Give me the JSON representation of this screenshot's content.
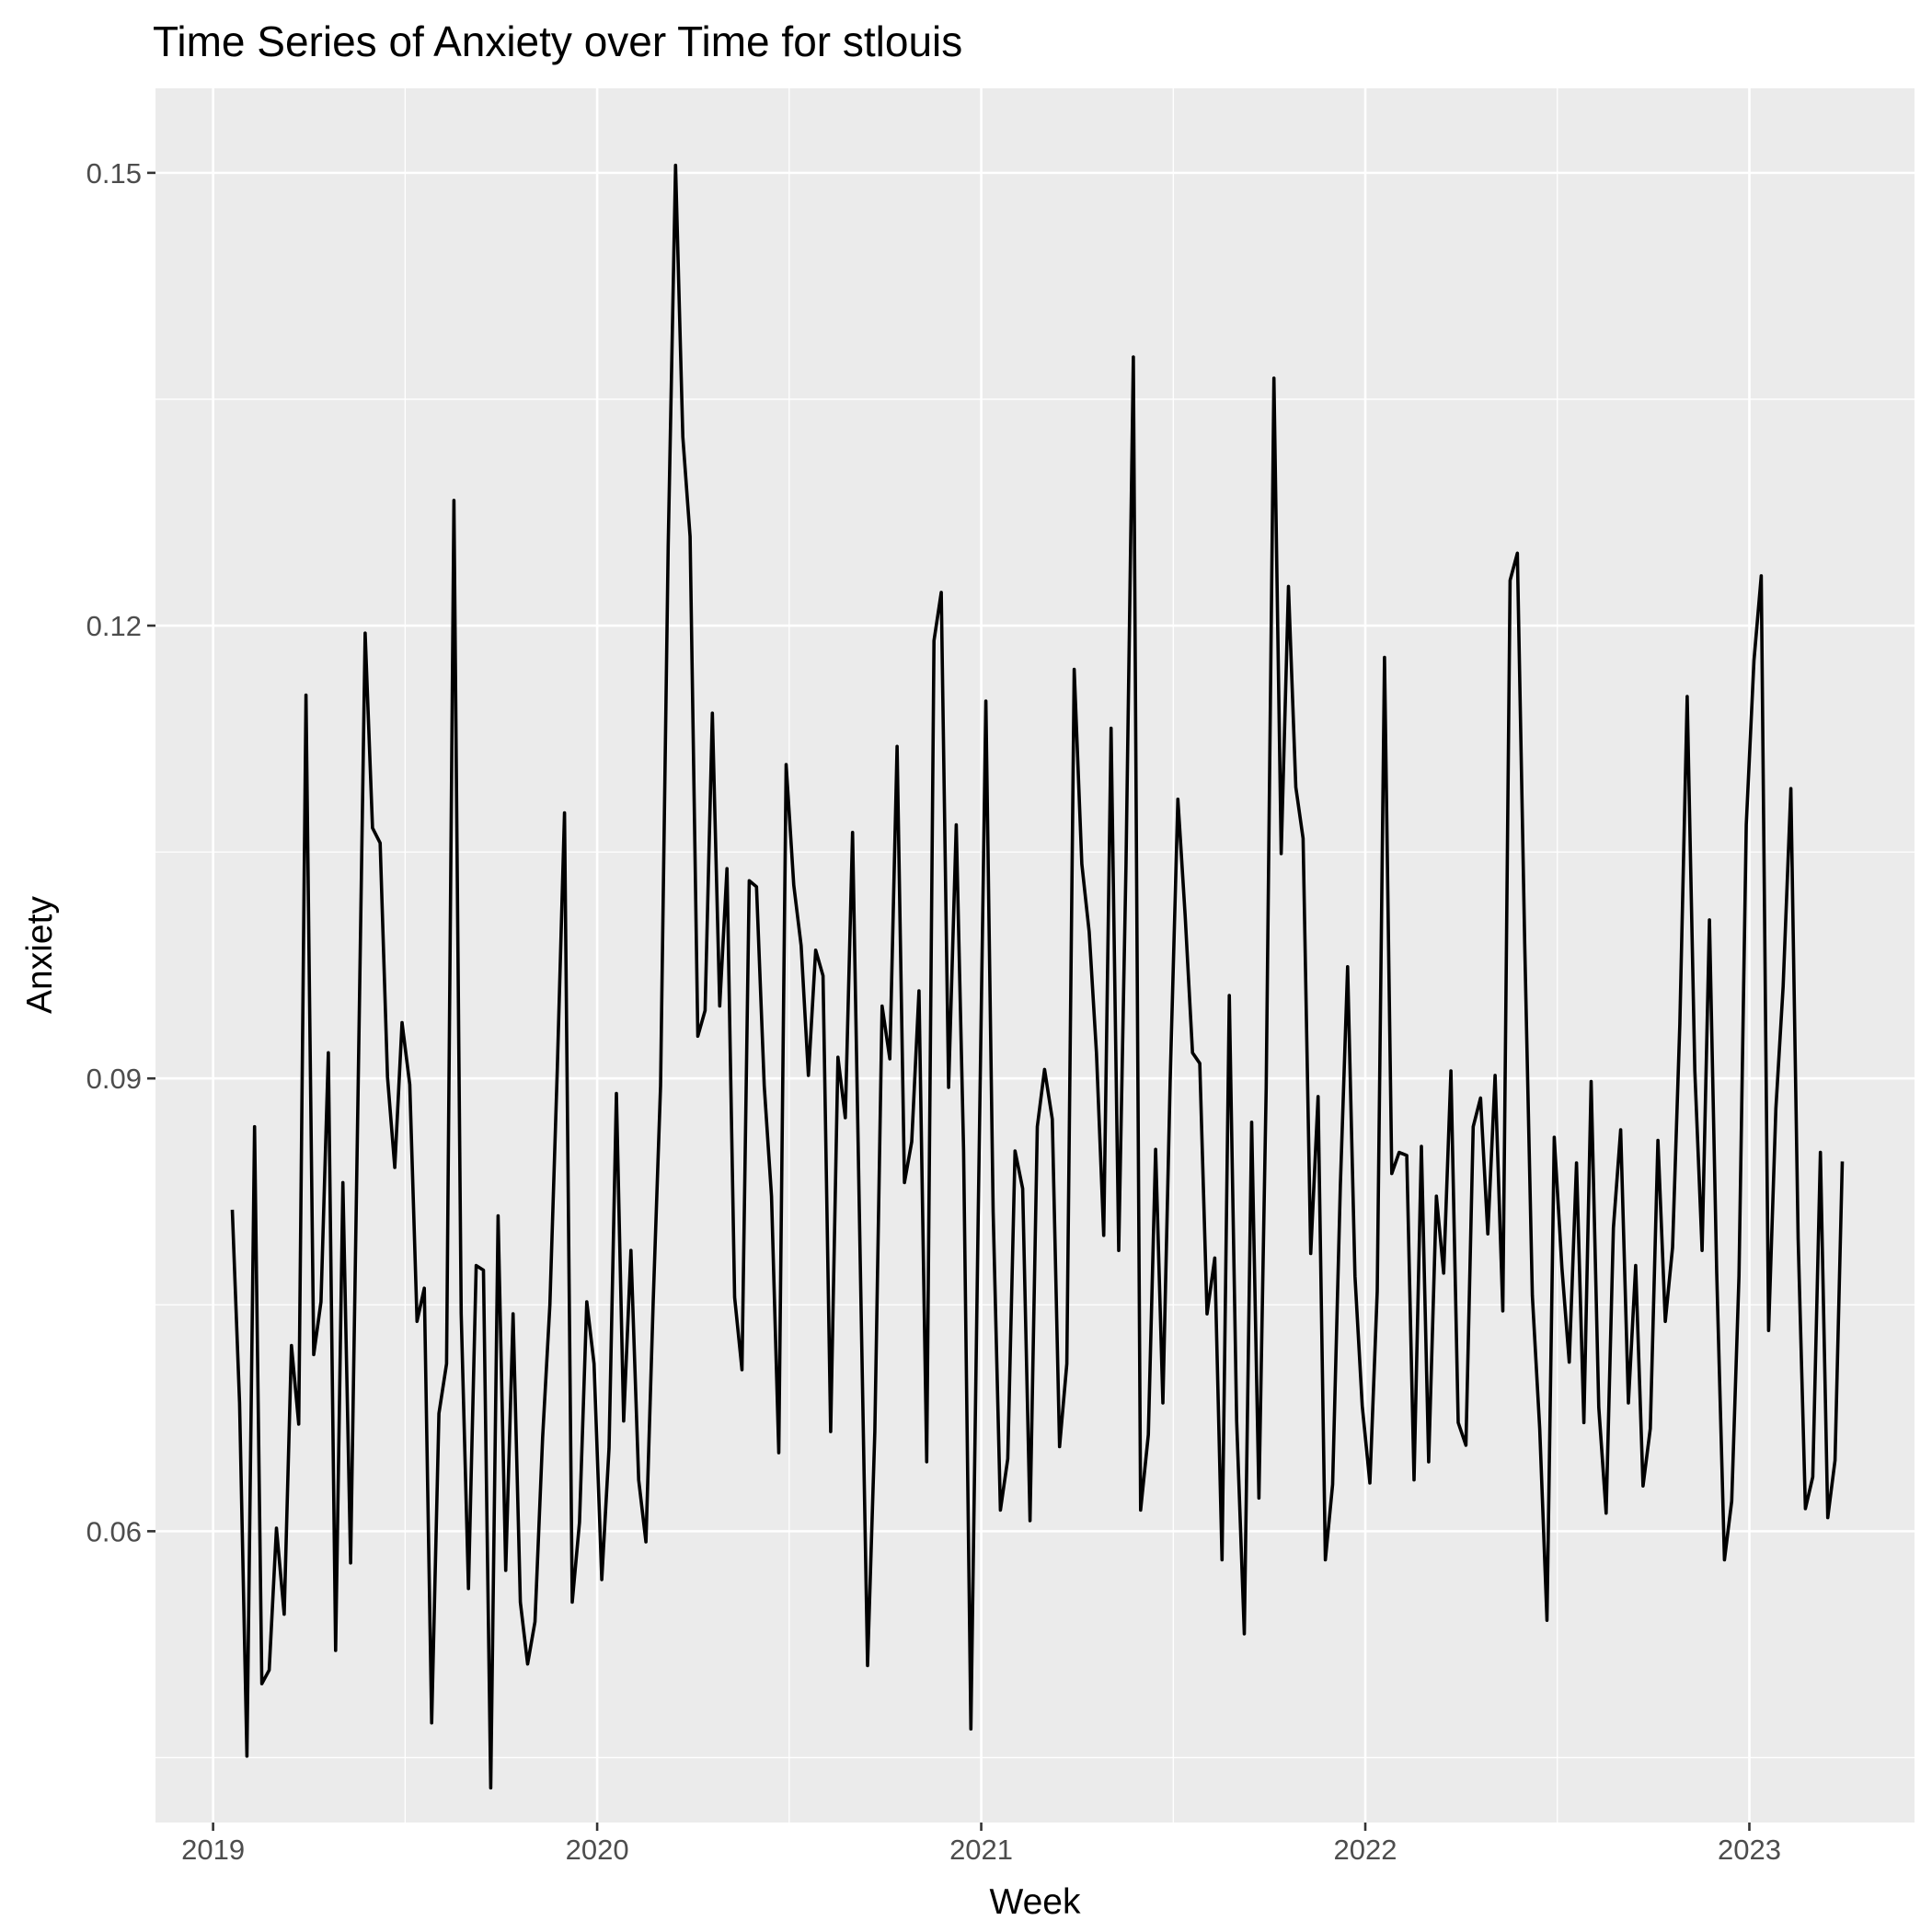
{
  "chart_data": {
    "type": "line",
    "title": "Time Series of Anxiety over Time for  stlouis",
    "xlabel": "Week",
    "ylabel": "Anxiety",
    "x_tick_labels": [
      "2019",
      "2020",
      "2021",
      "2022",
      "2023"
    ],
    "y_tick_labels": [
      "0.06",
      "0.09",
      "0.12",
      "0.15"
    ],
    "x_ticks": [
      2019,
      2020,
      2021,
      2022,
      2023
    ],
    "y_ticks": [
      0.06,
      0.09,
      0.12,
      0.15
    ],
    "xlim": [
      2018.85,
      2023.43
    ],
    "ylim": [
      0.0407,
      0.1556
    ],
    "grid": true,
    "background": "#ebebeb",
    "line_color": "#000000",
    "series": [
      {
        "x": [
          2019.05,
          2019.069,
          2019.088,
          2019.108,
          2019.127,
          2019.146,
          2019.165,
          2019.185,
          2019.204,
          2019.223,
          2019.242,
          2019.262,
          2019.281,
          2019.3,
          2019.319,
          2019.338,
          2019.358,
          2019.377,
          2019.396,
          2019.415,
          2019.435,
          2019.454,
          2019.473,
          2019.492,
          2019.512,
          2019.531,
          2019.55,
          2019.569,
          2019.588,
          2019.608,
          2019.627,
          2019.646,
          2019.665,
          2019.685,
          2019.704,
          2019.723,
          2019.742,
          2019.762,
          2019.781,
          2019.8,
          2019.819,
          2019.838,
          2019.858,
          2019.877,
          2019.896,
          2019.915,
          2019.935,
          2019.954,
          2019.973,
          2019.992,
          2020.012,
          2020.031,
          2020.05,
          2020.069,
          2020.088,
          2020.108,
          2020.127,
          2020.146,
          2020.165,
          2020.185,
          2020.204,
          2020.223,
          2020.242,
          2020.262,
          2020.281,
          2020.3,
          2020.319,
          2020.338,
          2020.358,
          2020.377,
          2020.396,
          2020.415,
          2020.435,
          2020.454,
          2020.473,
          2020.492,
          2020.512,
          2020.531,
          2020.55,
          2020.569,
          2020.588,
          2020.608,
          2020.627,
          2020.646,
          2020.665,
          2020.685,
          2020.704,
          2020.723,
          2020.742,
          2020.762,
          2020.781,
          2020.8,
          2020.819,
          2020.838,
          2020.858,
          2020.877,
          2020.896,
          2020.915,
          2020.935,
          2020.954,
          2020.973,
          2020.992,
          2021.012,
          2021.031,
          2021.05,
          2021.069,
          2021.088,
          2021.108,
          2021.127,
          2021.146,
          2021.165,
          2021.185,
          2021.204,
          2021.223,
          2021.242,
          2021.262,
          2021.281,
          2021.3,
          2021.319,
          2021.338,
          2021.358,
          2021.377,
          2021.396,
          2021.415,
          2021.435,
          2021.454,
          2021.473,
          2021.492,
          2021.512,
          2021.531,
          2021.55,
          2021.569,
          2021.588,
          2021.608,
          2021.627,
          2021.646,
          2021.665,
          2021.685,
          2021.704,
          2021.723,
          2021.742,
          2021.762,
          2021.781,
          2021.8,
          2021.819,
          2021.838,
          2021.858,
          2021.877,
          2021.896,
          2021.915,
          2021.935,
          2021.954,
          2021.973,
          2021.992,
          2022.012,
          2022.031,
          2022.05,
          2022.069,
          2022.088,
          2022.108,
          2022.127,
          2022.146,
          2022.165,
          2022.185,
          2022.204,
          2022.223,
          2022.242,
          2022.262,
          2022.281,
          2022.3,
          2022.319,
          2022.338,
          2022.358,
          2022.377,
          2022.396,
          2022.415,
          2022.435,
          2022.454,
          2022.473,
          2022.492,
          2022.512,
          2022.531,
          2022.55,
          2022.569,
          2022.588,
          2022.608,
          2022.627,
          2022.646,
          2022.665,
          2022.685,
          2022.704,
          2022.723,
          2022.742,
          2022.762,
          2022.781,
          2022.8,
          2022.819,
          2022.838,
          2022.858,
          2022.877,
          2022.896,
          2022.915,
          2022.935,
          2022.954,
          2022.973,
          2022.992,
          2023.012,
          2023.031,
          2023.05,
          2023.069,
          2023.088,
          2023.108,
          2023.127,
          2023.146,
          2023.165,
          2023.185,
          2023.204,
          2023.223,
          2023.242
        ],
        "y": [
          0.0813,
          0.0685,
          0.0451,
          0.0868,
          0.0499,
          0.0508,
          0.0602,
          0.0545,
          0.0723,
          0.0671,
          0.1154,
          0.0717,
          0.0752,
          0.0917,
          0.0521,
          0.0831,
          0.0579,
          0.0883,
          0.1195,
          0.1066,
          0.1056,
          0.0901,
          0.0841,
          0.0937,
          0.0896,
          0.0739,
          0.0761,
          0.0473,
          0.0678,
          0.0711,
          0.1283,
          0.0744,
          0.0562,
          0.0776,
          0.0773,
          0.043,
          0.0809,
          0.0574,
          0.0744,
          0.0553,
          0.0512,
          0.054,
          0.0662,
          0.075,
          0.0905,
          0.1076,
          0.0553,
          0.0606,
          0.0752,
          0.0711,
          0.0568,
          0.0655,
          0.089,
          0.0673,
          0.0786,
          0.0634,
          0.0593,
          0.0752,
          0.0895,
          0.1253,
          0.1505,
          0.1325,
          0.1259,
          0.0928,
          0.0945,
          0.1142,
          0.0948,
          0.1039,
          0.0755,
          0.0707,
          0.1031,
          0.1027,
          0.0895,
          0.0822,
          0.0652,
          0.1108,
          0.1028,
          0.0988,
          0.0902,
          0.0985,
          0.0968,
          0.0666,
          0.0914,
          0.0874,
          0.1063,
          0.0777,
          0.0511,
          0.0666,
          0.0948,
          0.0913,
          0.112,
          0.0831,
          0.0858,
          0.0958,
          0.0646,
          0.119,
          0.1222,
          0.0894,
          0.1068,
          0.0852,
          0.0469,
          0.0806,
          0.115,
          0.0812,
          0.0614,
          0.0648,
          0.0852,
          0.0827,
          0.0607,
          0.0868,
          0.0906,
          0.0873,
          0.0656,
          0.0711,
          0.1171,
          0.1042,
          0.0997,
          0.0917,
          0.0796,
          0.1132,
          0.0786,
          0.1041,
          0.1378,
          0.0614,
          0.0664,
          0.0853,
          0.0685,
          0.0898,
          0.1085,
          0.1008,
          0.0917,
          0.091,
          0.0744,
          0.0781,
          0.0581,
          0.0955,
          0.0673,
          0.0532,
          0.0871,
          0.0622,
          0.0894,
          0.1364,
          0.1049,
          0.1226,
          0.1093,
          0.1059,
          0.0784,
          0.0888,
          0.0581,
          0.0631,
          0.0829,
          0.0974,
          0.0769,
          0.0683,
          0.0632,
          0.0759,
          0.1179,
          0.0837,
          0.0851,
          0.0849,
          0.0634,
          0.0855,
          0.0646,
          0.0822,
          0.0771,
          0.0905,
          0.0672,
          0.0657,
          0.0868,
          0.0887,
          0.0797,
          0.0902,
          0.0746,
          0.123,
          0.1248,
          0.0989,
          0.0756,
          0.0668,
          0.0541,
          0.0861,
          0.0774,
          0.0712,
          0.0844,
          0.0672,
          0.0898,
          0.0682,
          0.0612,
          0.0801,
          0.0866,
          0.0685,
          0.0776,
          0.063,
          0.0668,
          0.0859,
          0.0739,
          0.0788,
          0.0936,
          0.1153,
          0.0905,
          0.0786,
          0.1005,
          0.0771,
          0.0581,
          0.062,
          0.0769,
          0.1068,
          0.1177,
          0.1233,
          0.0733,
          0.088,
          0.0961,
          0.1092,
          0.0794,
          0.0615,
          0.0636,
          0.0851,
          0.0609,
          0.0647,
          0.0845
        ]
      }
    ]
  }
}
